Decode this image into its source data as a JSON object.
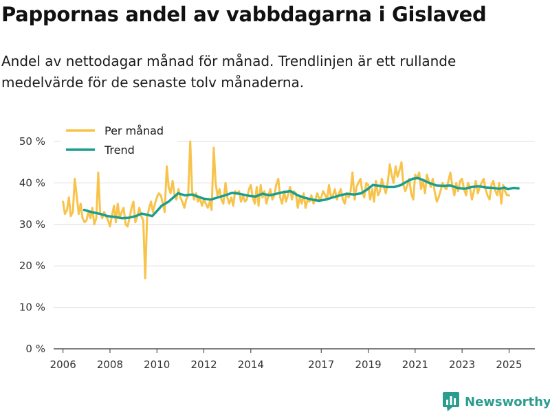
{
  "title": "Pappornas andel av vabbdagarna i Gislaved",
  "subtitle": "Andel av nettodagar månad för månad. Trendlinjen är ett rullande medelvärde för de senaste tolv månaderna.",
  "brand": {
    "name": "Newsworthy",
    "icon": "bar-chart-logo-icon",
    "color": "#2a9d8f"
  },
  "colors": {
    "monthly": "#f8c34b",
    "trend": "#189e8f",
    "grid": "#dddddd",
    "axis": "#333333"
  },
  "chart_data": {
    "type": "line",
    "title": "Pappornas andel av vabbdagarna i Gislaved",
    "xlabel": "",
    "ylabel": "",
    "xlim": [
      2005.6,
      2026.1
    ],
    "ylim": [
      0,
      50
    ],
    "x_ticks": [
      2006,
      2008,
      2010,
      2012,
      2014,
      2017,
      2019,
      2021,
      2023,
      2025
    ],
    "y_ticks": [
      0,
      10,
      20,
      30,
      40,
      50
    ],
    "y_tick_labels": [
      "0 %",
      "10 %",
      "20 %",
      "30 %",
      "40 %",
      "50 %"
    ],
    "grid": true,
    "legend": {
      "position": "top-left",
      "entries": [
        "Per månad",
        "Trend"
      ]
    },
    "series": [
      {
        "name": "Per månad",
        "color": "#f8c34b",
        "points": [
          [
            2006.0,
            35.5
          ],
          [
            2006.08,
            32.5
          ],
          [
            2006.17,
            33.5
          ],
          [
            2006.25,
            36.5
          ],
          [
            2006.33,
            32
          ],
          [
            2006.42,
            33
          ],
          [
            2006.5,
            41
          ],
          [
            2006.58,
            37
          ],
          [
            2006.67,
            32.5
          ],
          [
            2006.75,
            35
          ],
          [
            2006.83,
            31.5
          ],
          [
            2006.92,
            30.5
          ],
          [
            2007.0,
            31
          ],
          [
            2007.08,
            33
          ],
          [
            2007.17,
            31.5
          ],
          [
            2007.25,
            34
          ],
          [
            2007.33,
            30
          ],
          [
            2007.42,
            31.5
          ],
          [
            2007.5,
            42.5
          ],
          [
            2007.58,
            33
          ],
          [
            2007.67,
            31.5
          ],
          [
            2007.75,
            33
          ],
          [
            2007.83,
            32
          ],
          [
            2007.92,
            31
          ],
          [
            2008.0,
            29.5
          ],
          [
            2008.08,
            32
          ],
          [
            2008.17,
            34.5
          ],
          [
            2008.25,
            30.5
          ],
          [
            2008.33,
            35
          ],
          [
            2008.42,
            31.5
          ],
          [
            2008.5,
            33
          ],
          [
            2008.58,
            34
          ],
          [
            2008.67,
            30
          ],
          [
            2008.75,
            29.5
          ],
          [
            2008.83,
            31.5
          ],
          [
            2008.92,
            34
          ],
          [
            2009.0,
            35.5
          ],
          [
            2009.08,
            30.5
          ],
          [
            2009.17,
            32
          ],
          [
            2009.25,
            34
          ],
          [
            2009.33,
            32
          ],
          [
            2009.42,
            31
          ],
          [
            2009.5,
            17
          ],
          [
            2009.58,
            31.5
          ],
          [
            2009.67,
            34
          ],
          [
            2009.75,
            35.5
          ],
          [
            2009.83,
            33
          ],
          [
            2009.92,
            35
          ],
          [
            2010.0,
            36.5
          ],
          [
            2010.08,
            37.5
          ],
          [
            2010.17,
            37
          ],
          [
            2010.25,
            35
          ],
          [
            2010.33,
            33
          ],
          [
            2010.42,
            44
          ],
          [
            2010.5,
            39
          ],
          [
            2010.58,
            37.5
          ],
          [
            2010.67,
            40.5
          ],
          [
            2010.75,
            37
          ],
          [
            2010.83,
            36
          ],
          [
            2010.92,
            38.5
          ],
          [
            2011.0,
            36.5
          ],
          [
            2011.08,
            35.5
          ],
          [
            2011.17,
            34
          ],
          [
            2011.25,
            36
          ],
          [
            2011.33,
            37
          ],
          [
            2011.42,
            50
          ],
          [
            2011.5,
            38
          ],
          [
            2011.58,
            36
          ],
          [
            2011.67,
            37.5
          ],
          [
            2011.75,
            35.5
          ],
          [
            2011.83,
            36.5
          ],
          [
            2011.92,
            34.5
          ],
          [
            2012.0,
            36
          ],
          [
            2012.08,
            35
          ],
          [
            2012.17,
            34
          ],
          [
            2012.25,
            35.5
          ],
          [
            2012.33,
            33.5
          ],
          [
            2012.42,
            48.5
          ],
          [
            2012.5,
            40
          ],
          [
            2012.58,
            37
          ],
          [
            2012.67,
            38.5
          ],
          [
            2012.75,
            36
          ],
          [
            2012.83,
            35
          ],
          [
            2012.92,
            40
          ],
          [
            2013.0,
            36.5
          ],
          [
            2013.08,
            35
          ],
          [
            2013.17,
            36.5
          ],
          [
            2013.25,
            34.5
          ],
          [
            2013.33,
            38
          ],
          [
            2013.42,
            37.5
          ],
          [
            2013.5,
            38
          ],
          [
            2013.58,
            35.5
          ],
          [
            2013.67,
            37
          ],
          [
            2013.75,
            35.5
          ],
          [
            2013.83,
            36
          ],
          [
            2013.92,
            38.5
          ],
          [
            2014.0,
            39.5
          ],
          [
            2014.08,
            36.5
          ],
          [
            2014.17,
            35
          ],
          [
            2014.25,
            39
          ],
          [
            2014.33,
            34.5
          ],
          [
            2014.42,
            39.5
          ],
          [
            2014.5,
            36.5
          ],
          [
            2014.58,
            38
          ],
          [
            2014.67,
            35
          ],
          [
            2014.75,
            37
          ],
          [
            2014.83,
            38.5
          ],
          [
            2014.92,
            36
          ],
          [
            2015.0,
            37
          ],
          [
            2015.08,
            39.5
          ],
          [
            2015.17,
            41
          ],
          [
            2015.25,
            36.5
          ],
          [
            2015.33,
            35
          ],
          [
            2015.42,
            38
          ],
          [
            2015.5,
            35.5
          ],
          [
            2015.58,
            37
          ],
          [
            2015.67,
            39
          ],
          [
            2015.75,
            36
          ],
          [
            2015.83,
            38
          ],
          [
            2015.92,
            37.5
          ],
          [
            2016.0,
            34
          ],
          [
            2016.08,
            36.5
          ],
          [
            2016.17,
            35
          ],
          [
            2016.25,
            37.5
          ],
          [
            2016.33,
            34
          ],
          [
            2016.42,
            36
          ],
          [
            2016.5,
            35.5
          ],
          [
            2016.58,
            37
          ],
          [
            2016.67,
            35
          ],
          [
            2016.75,
            36
          ],
          [
            2016.83,
            37.5
          ],
          [
            2016.92,
            36
          ],
          [
            2017.0,
            36.5
          ],
          [
            2017.08,
            38
          ],
          [
            2017.17,
            37
          ],
          [
            2017.25,
            36
          ],
          [
            2017.33,
            39.5
          ],
          [
            2017.42,
            36.5
          ],
          [
            2017.5,
            37
          ],
          [
            2017.58,
            38.5
          ],
          [
            2017.67,
            36
          ],
          [
            2017.75,
            37.5
          ],
          [
            2017.83,
            38.5
          ],
          [
            2017.92,
            36
          ],
          [
            2018.0,
            35
          ],
          [
            2018.08,
            37.5
          ],
          [
            2018.17,
            36.5
          ],
          [
            2018.25,
            38
          ],
          [
            2018.33,
            42.5
          ],
          [
            2018.42,
            36
          ],
          [
            2018.5,
            39
          ],
          [
            2018.58,
            40
          ],
          [
            2018.67,
            41
          ],
          [
            2018.75,
            38
          ],
          [
            2018.83,
            36.5
          ],
          [
            2018.92,
            40
          ],
          [
            2019.0,
            39.5
          ],
          [
            2019.08,
            36
          ],
          [
            2019.17,
            38.5
          ],
          [
            2019.25,
            35.5
          ],
          [
            2019.33,
            40.5
          ],
          [
            2019.42,
            37
          ],
          [
            2019.5,
            38
          ],
          [
            2019.58,
            41
          ],
          [
            2019.67,
            39
          ],
          [
            2019.75,
            37.5
          ],
          [
            2019.83,
            40
          ],
          [
            2019.92,
            44.5
          ],
          [
            2020.0,
            42
          ],
          [
            2020.08,
            40
          ],
          [
            2020.17,
            44
          ],
          [
            2020.25,
            41.5
          ],
          [
            2020.33,
            43
          ],
          [
            2020.42,
            45
          ],
          [
            2020.5,
            39.5
          ],
          [
            2020.58,
            38
          ],
          [
            2020.67,
            39.5
          ],
          [
            2020.75,
            41
          ],
          [
            2020.83,
            37.5
          ],
          [
            2020.92,
            36
          ],
          [
            2021.0,
            42
          ],
          [
            2021.08,
            41
          ],
          [
            2021.17,
            42.5
          ],
          [
            2021.25,
            38.5
          ],
          [
            2021.33,
            40.5
          ],
          [
            2021.42,
            37.5
          ],
          [
            2021.5,
            42
          ],
          [
            2021.58,
            40.5
          ],
          [
            2021.67,
            39
          ],
          [
            2021.75,
            41
          ],
          [
            2021.83,
            38
          ],
          [
            2021.92,
            35.5
          ],
          [
            2022.0,
            36.5
          ],
          [
            2022.08,
            38
          ],
          [
            2022.17,
            40
          ],
          [
            2022.25,
            39
          ],
          [
            2022.33,
            38.5
          ],
          [
            2022.42,
            40.5
          ],
          [
            2022.5,
            42.5
          ],
          [
            2022.58,
            39.5
          ],
          [
            2022.67,
            37
          ],
          [
            2022.75,
            40
          ],
          [
            2022.83,
            38
          ],
          [
            2022.92,
            40.5
          ],
          [
            2023.0,
            41
          ],
          [
            2023.08,
            38.5
          ],
          [
            2023.17,
            37
          ],
          [
            2023.25,
            40
          ],
          [
            2023.33,
            39
          ],
          [
            2023.42,
            36
          ],
          [
            2023.5,
            38
          ],
          [
            2023.58,
            40.5
          ],
          [
            2023.67,
            37.5
          ],
          [
            2023.75,
            39
          ],
          [
            2023.83,
            40
          ],
          [
            2023.92,
            41
          ],
          [
            2024.0,
            38.5
          ],
          [
            2024.08,
            37
          ],
          [
            2024.17,
            36
          ],
          [
            2024.25,
            39.5
          ],
          [
            2024.33,
            40.5
          ],
          [
            2024.42,
            38
          ],
          [
            2024.5,
            37
          ],
          [
            2024.58,
            40
          ],
          [
            2024.67,
            35
          ],
          [
            2024.75,
            39.5
          ],
          [
            2024.83,
            38
          ],
          [
            2024.92,
            37
          ],
          [
            2025.0,
            37
          ]
        ]
      },
      {
        "name": "Trend",
        "color": "#189e8f",
        "points": [
          [
            2006.9,
            33.5
          ],
          [
            2007.2,
            33
          ],
          [
            2007.6,
            32.5
          ],
          [
            2007.9,
            32
          ],
          [
            2008.2,
            31.8
          ],
          [
            2008.5,
            31.5
          ],
          [
            2008.8,
            31.6
          ],
          [
            2009.1,
            32
          ],
          [
            2009.35,
            32.6
          ],
          [
            2009.6,
            32.3
          ],
          [
            2009.8,
            32
          ],
          [
            2010.0,
            33.2
          ],
          [
            2010.2,
            34.5
          ],
          [
            2010.5,
            35.5
          ],
          [
            2010.9,
            37.5
          ],
          [
            2011.2,
            37
          ],
          [
            2011.5,
            37.2
          ],
          [
            2011.8,
            36.6
          ],
          [
            2012.0,
            36.2
          ],
          [
            2012.3,
            36
          ],
          [
            2012.6,
            36.5
          ],
          [
            2012.9,
            37
          ],
          [
            2013.2,
            37.6
          ],
          [
            2013.5,
            37.4
          ],
          [
            2013.9,
            36.9
          ],
          [
            2014.2,
            36.7
          ],
          [
            2014.5,
            37.4
          ],
          [
            2014.8,
            37
          ],
          [
            2015.1,
            37.4
          ],
          [
            2015.4,
            37.8
          ],
          [
            2015.7,
            38
          ],
          [
            2016.0,
            37
          ],
          [
            2016.3,
            36.4
          ],
          [
            2016.6,
            36
          ],
          [
            2016.9,
            35.7
          ],
          [
            2017.2,
            36
          ],
          [
            2017.5,
            36.5
          ],
          [
            2017.8,
            37
          ],
          [
            2018.1,
            37.4
          ],
          [
            2018.4,
            37.2
          ],
          [
            2018.7,
            37.5
          ],
          [
            2019.0,
            38.6
          ],
          [
            2019.2,
            39.5
          ],
          [
            2019.5,
            39.3
          ],
          [
            2019.8,
            39
          ],
          [
            2020.1,
            39
          ],
          [
            2020.4,
            39.5
          ],
          [
            2020.7,
            40.5
          ],
          [
            2020.9,
            41
          ],
          [
            2021.1,
            41.2
          ],
          [
            2021.3,
            40.8
          ],
          [
            2021.6,
            40
          ],
          [
            2021.9,
            39.4
          ],
          [
            2022.2,
            39.3
          ],
          [
            2022.5,
            39.4
          ],
          [
            2022.8,
            38.8
          ],
          [
            2023.1,
            38.6
          ],
          [
            2023.4,
            39
          ],
          [
            2023.7,
            39.2
          ],
          [
            2024.0,
            38.9
          ],
          [
            2024.3,
            38.8
          ],
          [
            2024.6,
            38.6
          ],
          [
            2024.8,
            38.9
          ],
          [
            2024.95,
            38.5
          ],
          [
            2025.2,
            38.8
          ],
          [
            2025.4,
            38.7
          ]
        ]
      }
    ]
  }
}
